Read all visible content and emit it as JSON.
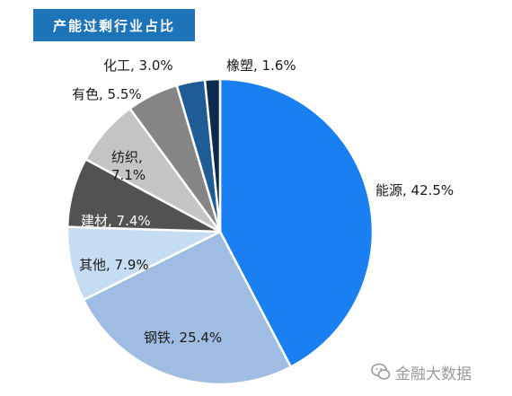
{
  "chart_data": {
    "type": "pie",
    "title": "产能过剩行业占比",
    "slices": [
      {
        "label": "能源",
        "value": 42.5,
        "display": "能源, 42.5%",
        "color": "#1a7ff0"
      },
      {
        "label": "钢铁",
        "value": 25.4,
        "display": "钢铁, 25.4%",
        "color": "#9fbde3"
      },
      {
        "label": "其他",
        "value": 7.9,
        "display": "其他, 7.9%",
        "color": "#c6dcf2"
      },
      {
        "label": "建材",
        "value": 7.4,
        "display": "建材, 7.4%",
        "color": "#525252"
      },
      {
        "label": "纺织",
        "value": 7.1,
        "display": [
          "纺织,",
          "7.1%"
        ],
        "color": "#c4c4c4"
      },
      {
        "label": "有色",
        "value": 5.5,
        "display": "有色, 5.5%",
        "color": "#858585"
      },
      {
        "label": "化工",
        "value": 3.0,
        "display": "化工, 3.0%",
        "color": "#1f5b94"
      },
      {
        "label": "橡塑",
        "value": 1.6,
        "display": "橡塑, 1.6%",
        "color": "#0c2a4d"
      }
    ]
  },
  "watermark": {
    "text": "金融大数据"
  }
}
